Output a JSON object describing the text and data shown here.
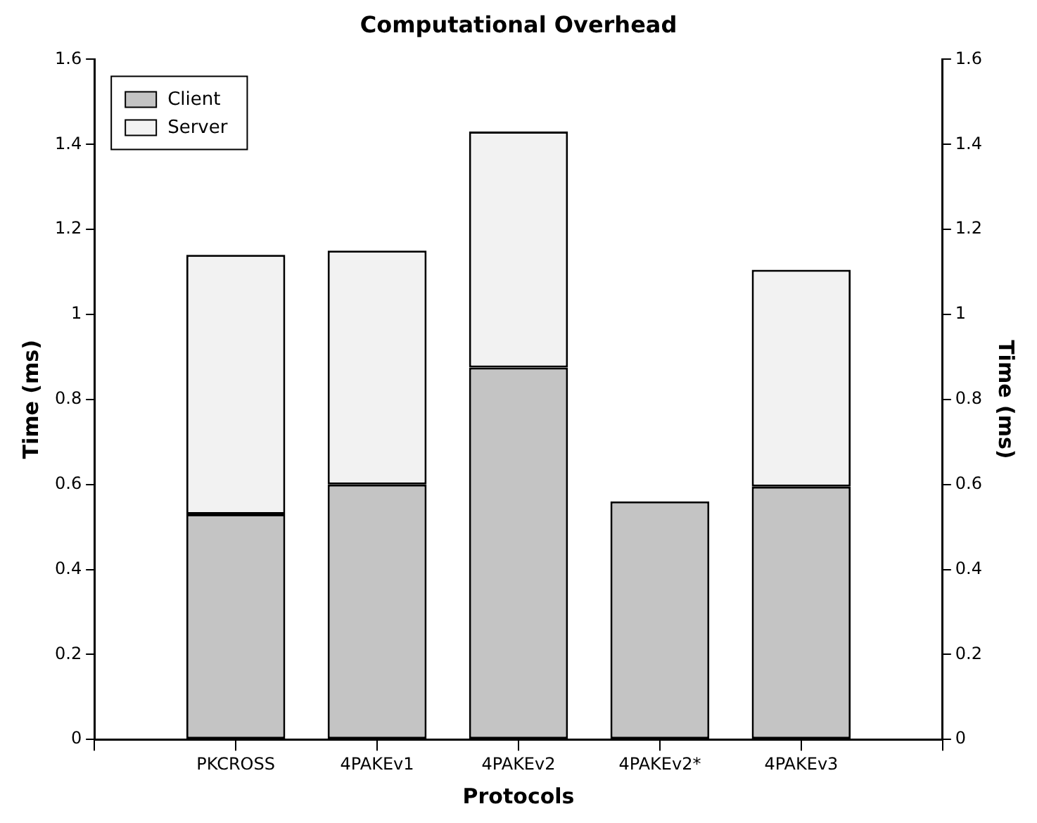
{
  "chart_data": {
    "type": "bar",
    "title": "Computational Overhead",
    "xlabel": "Protocols",
    "ylabel": "Time (ms)",
    "y2label": "Time (ms)",
    "categories": [
      null,
      "PKCROSS",
      "4PAKEv1",
      "4PAKEv2",
      "4PAKEv2*",
      "4PAKEv3",
      null
    ],
    "stacked": true,
    "series": [
      {
        "name": "Client",
        "color": "#c4c4c4",
        "values": [
          null,
          0.53,
          0.6,
          0.875,
          0.56,
          0.595,
          null
        ]
      },
      {
        "name": "Server",
        "color": "#f2f2f2",
        "values": [
          null,
          0.61,
          0.55,
          0.555,
          0,
          0.51,
          null
        ]
      }
    ],
    "ylim": [
      0,
      1.6
    ],
    "yticks": [
      0,
      0.2,
      0.4,
      0.6,
      0.8,
      1,
      1.2,
      1.4,
      1.6
    ],
    "y2lim": [
      0,
      1.6
    ],
    "y2ticks": [
      0,
      0.2,
      0.4,
      0.6,
      0.8,
      1,
      1.2,
      1.4,
      1.6
    ],
    "grid": false,
    "legend": "top left"
  }
}
